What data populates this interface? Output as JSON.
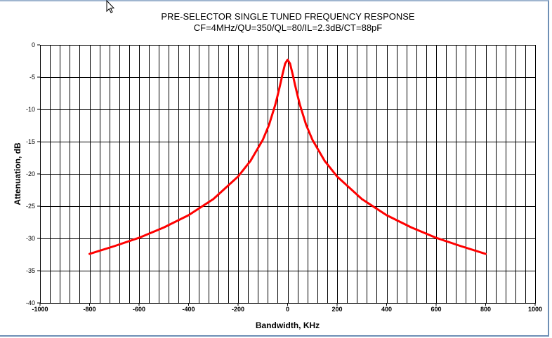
{
  "chart_data": {
    "type": "line",
    "title": "PRE-SELECTOR SINGLE TUNED FREQUENCY RESPONSE",
    "subtitle": "CF=4MHz/QU=350/QL=80/IL=2.3dB/CT=88pF",
    "xlabel": "Bandwidth, KHz",
    "ylabel": "Attenuation, dB",
    "xlim": [
      -1000,
      1000
    ],
    "ylim": [
      -40,
      0
    ],
    "xticks": [
      -1000,
      -800,
      -600,
      -400,
      -200,
      0,
      200,
      400,
      600,
      800,
      1000
    ],
    "yticks": [
      0,
      -5,
      -10,
      -15,
      -20,
      -25,
      -30,
      -35,
      -40
    ],
    "grid": true,
    "series_color": "#ff0000",
    "series": [
      {
        "x": [
          -800,
          -700,
          -600,
          -500,
          -400,
          -300,
          -200,
          -150,
          -100,
          -75,
          -50,
          -40,
          -30,
          -20,
          -10,
          0,
          10,
          20,
          30,
          40,
          50,
          75,
          100,
          150,
          200,
          300,
          400,
          500,
          600,
          700,
          800
        ],
        "values": [
          -32.4,
          -31.2,
          -29.9,
          -28.3,
          -26.4,
          -23.9,
          -20.4,
          -18.0,
          -14.7,
          -12.4,
          -9.3,
          -7.8,
          -6.2,
          -4.5,
          -2.9,
          -2.3,
          -2.9,
          -4.5,
          -6.2,
          -7.8,
          -9.3,
          -12.4,
          -14.7,
          -18.0,
          -20.4,
          -23.9,
          -26.4,
          -28.3,
          -29.9,
          -31.2,
          -32.4
        ]
      }
    ]
  }
}
